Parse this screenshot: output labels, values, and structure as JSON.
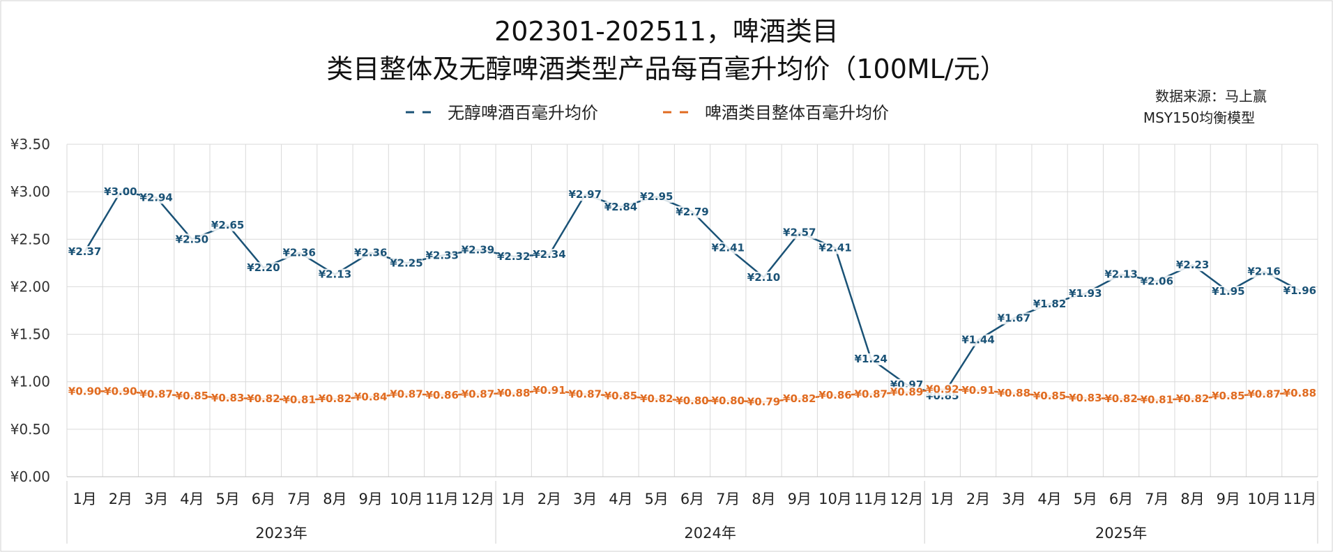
{
  "title_line1": "202301-202511，啤酒类目",
  "title_line2": "类目整体及无醇啤酒类型产品每百毫升均价（100ML/元）",
  "source_line1": "数据来源：马上赢",
  "source_line2": "MSY150均衡模型",
  "chart_data": {
    "type": "line",
    "title": "202301-202511，啤酒类目 类目整体及无醇啤酒类型产品每百毫升均价（100ML/元）",
    "y_ticks": [
      "¥3.50",
      "¥3.00",
      "¥2.50",
      "¥2.00",
      "¥1.50",
      "¥1.00",
      "¥0.50",
      "¥0.00"
    ],
    "ylim": [
      0,
      3.5
    ],
    "grid": true,
    "legend_position": "top",
    "months": [
      "1月",
      "2月",
      "3月",
      "4月",
      "5月",
      "6月",
      "7月",
      "8月",
      "9月",
      "10月",
      "11月",
      "12月",
      "1月",
      "2月",
      "3月",
      "4月",
      "5月",
      "6月",
      "7月",
      "8月",
      "9月",
      "10月",
      "11月",
      "12月",
      "1月",
      "2月",
      "3月",
      "4月",
      "5月",
      "6月",
      "7月",
      "8月",
      "9月",
      "10月",
      "11月"
    ],
    "years": [
      {
        "label": "2023年",
        "count": 12
      },
      {
        "label": "2024年",
        "count": 12
      },
      {
        "label": "2025年",
        "count": 11
      }
    ],
    "series": [
      {
        "name": "无醇啤酒百毫升均价",
        "color": "#1a5276",
        "values": [
          2.37,
          3.0,
          2.94,
          2.5,
          2.65,
          2.2,
          2.36,
          2.13,
          2.36,
          2.25,
          2.33,
          2.39,
          2.32,
          2.34,
          2.97,
          2.84,
          2.95,
          2.79,
          2.41,
          2.1,
          2.57,
          2.41,
          1.24,
          0.97,
          0.85,
          1.44,
          1.67,
          1.82,
          1.93,
          2.13,
          2.06,
          2.23,
          1.95,
          2.16,
          1.96
        ],
        "labels": [
          "¥2.37",
          "¥3.00",
          "¥2.94",
          "¥2.50",
          "¥2.65",
          "¥2.20",
          "¥2.36",
          "¥2.13",
          "¥2.36",
          "¥2.25",
          "¥2.33",
          "¥2.39",
          "¥2.32",
          "¥2.34",
          "¥2.97",
          "¥2.84",
          "¥2.95",
          "¥2.79",
          "¥2.41",
          "¥2.10",
          "¥2.57",
          "¥2.41",
          "¥1.24",
          "¥0.97",
          "¥0.85",
          "¥1.44",
          "¥1.67",
          "¥1.82",
          "¥1.93",
          "¥2.13",
          "¥2.06",
          "¥2.23",
          "¥1.95",
          "¥2.16",
          "¥1.96"
        ]
      },
      {
        "name": "啤酒类目整体百毫升均价",
        "color": "#e06b20",
        "values": [
          0.9,
          0.9,
          0.87,
          0.85,
          0.83,
          0.82,
          0.81,
          0.82,
          0.84,
          0.87,
          0.86,
          0.87,
          0.88,
          0.91,
          0.87,
          0.85,
          0.82,
          0.8,
          0.8,
          0.79,
          0.82,
          0.86,
          0.87,
          0.89,
          0.92,
          0.91,
          0.88,
          0.85,
          0.83,
          0.82,
          0.81,
          0.82,
          0.85,
          0.87,
          0.88
        ],
        "labels": [
          "¥0.90",
          "¥0.90",
          "¥0.87",
          "¥0.85",
          "¥0.83",
          "¥0.82",
          "¥0.81",
          "¥0.82",
          "¥0.84",
          "¥0.87",
          "¥0.86",
          "¥0.87",
          "¥0.88",
          "¥0.91",
          "¥0.87",
          "¥0.85",
          "¥0.82",
          "¥0.80",
          "¥0.80",
          "¥0.79",
          "¥0.82",
          "¥0.86",
          "¥0.87",
          "¥0.89",
          "¥0.92",
          "¥0.91",
          "¥0.88",
          "¥0.85",
          "¥0.83",
          "¥0.82",
          "¥0.81",
          "¥0.82",
          "¥0.85",
          "¥0.87",
          "¥0.88"
        ]
      }
    ]
  }
}
